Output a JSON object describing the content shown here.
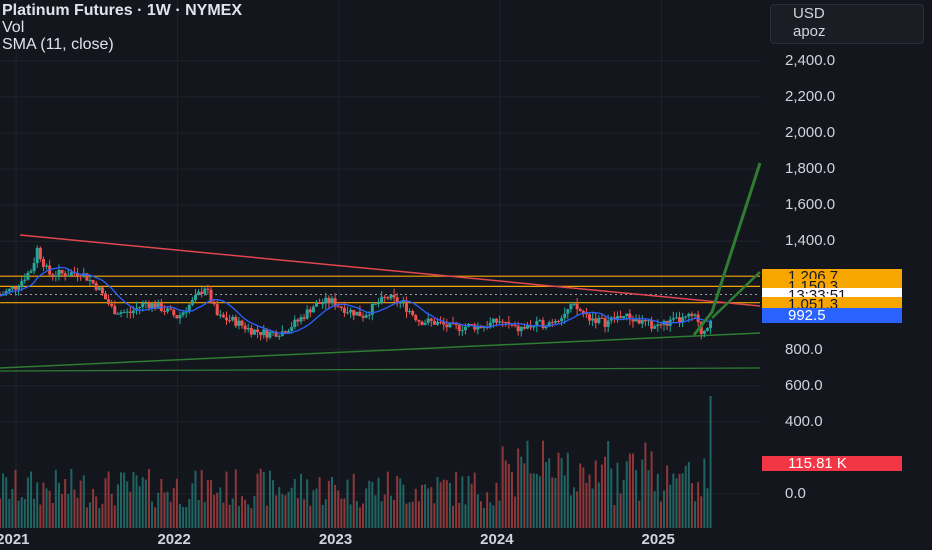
{
  "legend": {
    "title": "Platinum Futures · 1W · NYMEX",
    "vol": "Vol",
    "sma": "SMA (11, close)"
  },
  "currency": {
    "code": "USD",
    "sub": "apoz"
  },
  "chart_data": {
    "type": "candlestick",
    "title": "Platinum Futures · 1W · NYMEX",
    "ylim": [
      0,
      2500
    ],
    "y_ticks": [
      "2,400.0",
      "2,200.0",
      "2,000.0",
      "1,800.0",
      "1,600.0",
      "1,400.0",
      "800.0",
      "600.0",
      "400.0",
      "0.0"
    ],
    "y_tick_values": [
      2400,
      2200,
      2000,
      1800,
      1600,
      1400,
      800,
      600,
      400,
      0
    ],
    "x_ticks": [
      "2021",
      "2022",
      "2023",
      "2024",
      "2025"
    ],
    "x_tick_values": [
      2021.0,
      2022.0,
      2023.0,
      2024.0,
      2025.0
    ],
    "xlim": [
      2020.9,
      2025.35
    ],
    "price_series_anchor": [
      {
        "t": 2020.9,
        "close": 1100
      },
      {
        "t": 2021.0,
        "close": 1150
      },
      {
        "t": 2021.1,
        "close": 1250
      },
      {
        "t": 2021.13,
        "close": 1360
      },
      {
        "t": 2021.2,
        "close": 1220
      },
      {
        "t": 2021.3,
        "close": 1220
      },
      {
        "t": 2021.4,
        "close": 1230
      },
      {
        "t": 2021.5,
        "close": 1150
      },
      {
        "t": 2021.6,
        "close": 1020
      },
      {
        "t": 2021.7,
        "close": 1000
      },
      {
        "t": 2021.8,
        "close": 1060
      },
      {
        "t": 2021.9,
        "close": 1030
      },
      {
        "t": 2022.0,
        "close": 980
      },
      {
        "t": 2022.1,
        "close": 1070
      },
      {
        "t": 2022.17,
        "close": 1150
      },
      {
        "t": 2022.25,
        "close": 980
      },
      {
        "t": 2022.35,
        "close": 960
      },
      {
        "t": 2022.45,
        "close": 910
      },
      {
        "t": 2022.55,
        "close": 890
      },
      {
        "t": 2022.65,
        "close": 900
      },
      {
        "t": 2022.75,
        "close": 960
      },
      {
        "t": 2022.85,
        "close": 1050
      },
      {
        "t": 2022.95,
        "close": 1070
      },
      {
        "t": 2023.05,
        "close": 1020
      },
      {
        "t": 2023.15,
        "close": 990
      },
      {
        "t": 2023.25,
        "close": 1060
      },
      {
        "t": 2023.3,
        "close": 1090
      },
      {
        "t": 2023.4,
        "close": 1050
      },
      {
        "t": 2023.5,
        "close": 960
      },
      {
        "t": 2023.6,
        "close": 950
      },
      {
        "t": 2023.7,
        "close": 920
      },
      {
        "t": 2023.8,
        "close": 930
      },
      {
        "t": 2023.9,
        "close": 930
      },
      {
        "t": 2024.0,
        "close": 960
      },
      {
        "t": 2024.1,
        "close": 910
      },
      {
        "t": 2024.2,
        "close": 930
      },
      {
        "t": 2024.3,
        "close": 950
      },
      {
        "t": 2024.4,
        "close": 1000
      },
      {
        "t": 2024.45,
        "close": 1040
      },
      {
        "t": 2024.55,
        "close": 980
      },
      {
        "t": 2024.65,
        "close": 950
      },
      {
        "t": 2024.75,
        "close": 990
      },
      {
        "t": 2024.85,
        "close": 960
      },
      {
        "t": 2024.95,
        "close": 930
      },
      {
        "t": 2025.05,
        "close": 950
      },
      {
        "t": 2025.15,
        "close": 970
      },
      {
        "t": 2025.2,
        "close": 990
      },
      {
        "t": 2025.25,
        "close": 890
      },
      {
        "t": 2025.3,
        "close": 960
      },
      {
        "t": 2025.32,
        "close": 1080
      }
    ],
    "volume_max": 400,
    "horizontal_levels": [
      1206.7,
      1150.3,
      1051.3,
      1060
    ],
    "price_tags": [
      {
        "label": "1,206.7",
        "value": 1206.7,
        "bg": "#f7a600",
        "fg": "#131722"
      },
      {
        "label": "1,150.3",
        "value": 1150.3,
        "bg": "#f7a600",
        "fg": "#131722"
      },
      {
        "label": "13:33:51",
        "value": 1105,
        "bg": "#ffffff",
        "fg": "#131722"
      },
      {
        "label": "1,051.3",
        "value": 1051.3,
        "bg": "#f7a600",
        "fg": "#131722"
      },
      {
        "label": "992.5",
        "value": 992.5,
        "bg": "#2962ff",
        "fg": "#ffffff"
      },
      {
        "label": "115.81 K",
        "value": 115.81,
        "bg": "#f23645",
        "fg": "#ffffff"
      }
    ],
    "colors": {
      "up": "#26a69a",
      "down": "#ef5350",
      "sma": "#2962ff",
      "orange": "#f7a600",
      "trend_red": "#e0474f",
      "trend_green": "#2e7d32",
      "bg": "#14161d"
    }
  }
}
